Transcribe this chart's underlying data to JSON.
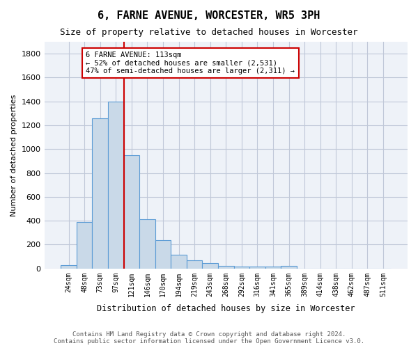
{
  "title": "6, FARNE AVENUE, WORCESTER, WR5 3PH",
  "subtitle": "Size of property relative to detached houses in Worcester",
  "xlabel": "Distribution of detached houses by size in Worcester",
  "ylabel": "Number of detached properties",
  "bins": [
    "24sqm",
    "48sqm",
    "73sqm",
    "97sqm",
    "121sqm",
    "146sqm",
    "170sqm",
    "194sqm",
    "219sqm",
    "243sqm",
    "268sqm",
    "292sqm",
    "316sqm",
    "341sqm",
    "365sqm",
    "389sqm",
    "414sqm",
    "438sqm",
    "462sqm",
    "487sqm",
    "511sqm"
  ],
  "values": [
    30,
    390,
    1260,
    1400,
    950,
    410,
    235,
    115,
    70,
    45,
    20,
    15,
    15,
    15,
    20,
    0,
    0,
    0,
    0,
    0,
    0
  ],
  "bar_color": "#c9d9e8",
  "bar_edge_color": "#5b9bd5",
  "grid_color": "#c0c8d8",
  "bg_color": "#eef2f8",
  "redline_bin_index": 4,
  "annotation_title": "6 FARNE AVENUE: 113sqm",
  "annotation_line1": "← 52% of detached houses are smaller (2,531)",
  "annotation_line2": "47% of semi-detached houses are larger (2,311) →",
  "annotation_box_color": "#ffffff",
  "annotation_edge_color": "#cc0000",
  "footer_line1": "Contains HM Land Registry data © Crown copyright and database right 2024.",
  "footer_line2": "Contains public sector information licensed under the Open Government Licence v3.0.",
  "ylim": [
    0,
    1900
  ],
  "yticks": [
    0,
    200,
    400,
    600,
    800,
    1000,
    1200,
    1400,
    1600,
    1800
  ]
}
